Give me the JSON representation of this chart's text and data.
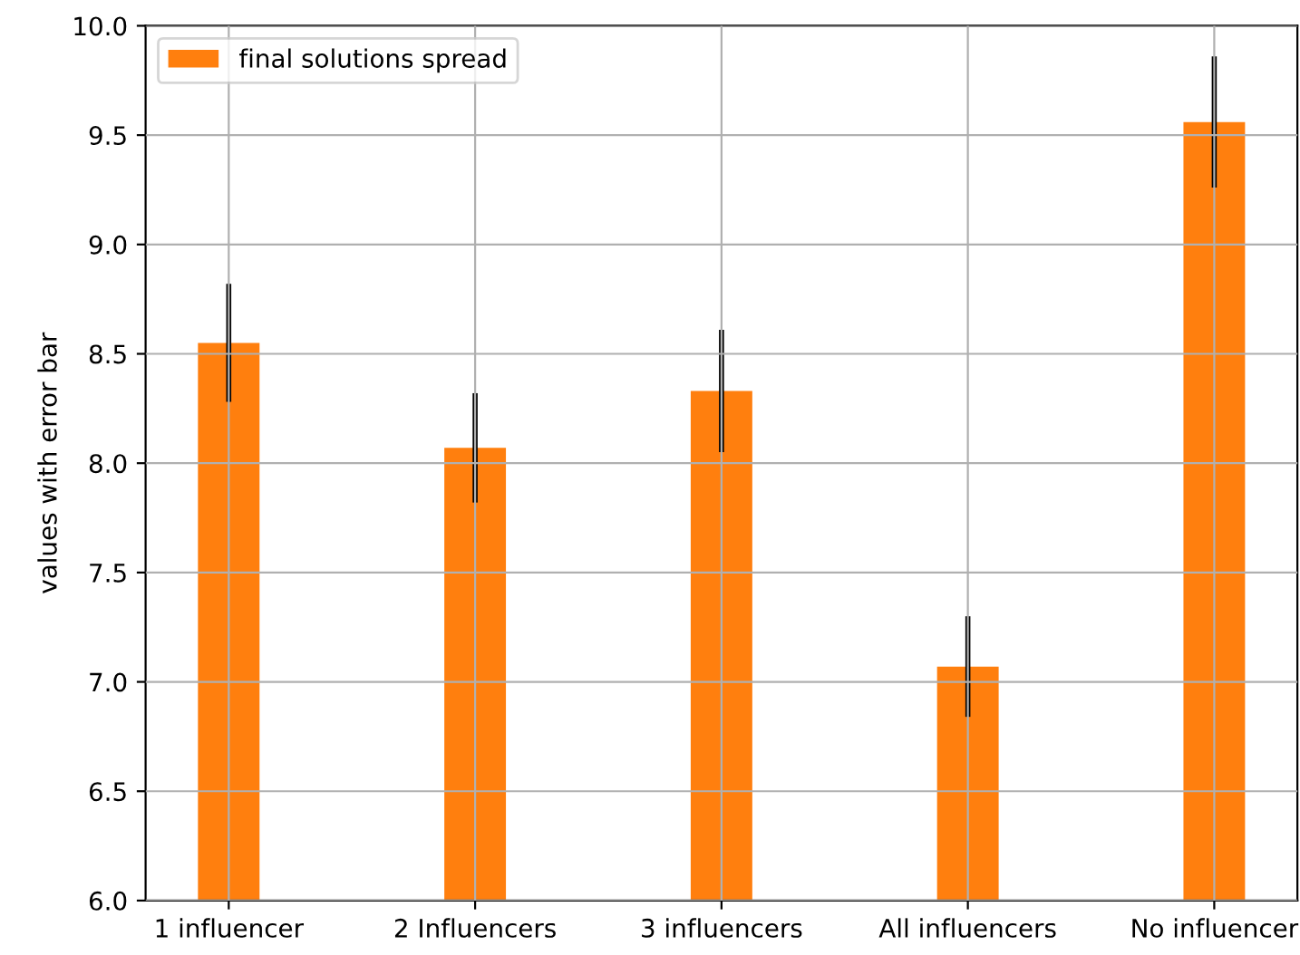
{
  "chart_data": {
    "type": "bar",
    "ylabel": "values with error bar",
    "categories": [
      "1 influencer",
      "2 Influencers",
      "3 influencers",
      "All influencers",
      "No influencer"
    ],
    "series": [
      {
        "name": "final solutions spread",
        "color": "#ff7f0e",
        "values": [
          8.55,
          8.07,
          8.33,
          7.07,
          9.56
        ],
        "errors": [
          0.27,
          0.25,
          0.28,
          0.23,
          0.3
        ]
      }
    ],
    "ylim": [
      6.0,
      10.0
    ],
    "yticks": [
      {
        "value": 6,
        "label": "6.0"
      },
      {
        "value": 6.5,
        "label": "6.5"
      },
      {
        "value": 7,
        "label": "7.0"
      },
      {
        "value": 7.5,
        "label": "7.5"
      },
      {
        "value": 8,
        "label": "8.0"
      },
      {
        "value": 8.5,
        "label": "8.5"
      },
      {
        "value": 9,
        "label": "9.0"
      },
      {
        "value": 9.5,
        "label": "9.5"
      },
      {
        "value": 10,
        "label": "10.0"
      }
    ],
    "grid": true,
    "legend": "top left"
  }
}
